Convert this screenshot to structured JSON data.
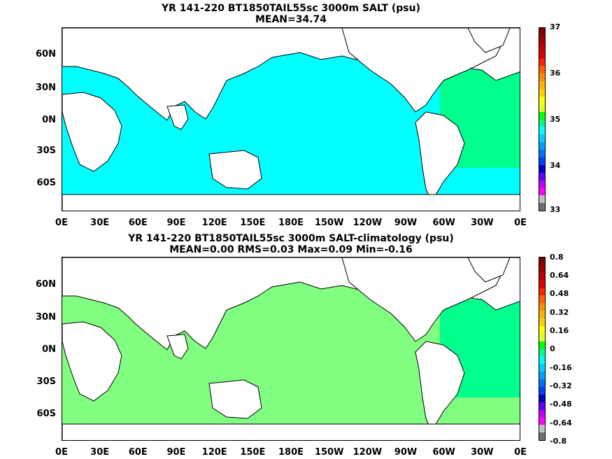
{
  "panels": [
    {
      "title1": "YR 141-220 BT1850TAIL55sc 3000m SALT (psu)",
      "title2": "MEAN=34.74",
      "ocean_color": "#00ffff",
      "patch_color": "#00ff8c",
      "colorbar": {
        "labels": [
          "37",
          "36",
          "35",
          "34",
          "33"
        ],
        "colors": [
          "#7f0000",
          "#a00000",
          "#c00000",
          "#e00000",
          "#ff2000",
          "#ff6000",
          "#ff8c00",
          "#ffb000",
          "#ffd000",
          "#ffff00",
          "#e0ff20",
          "#00ff00",
          "#00ff8c",
          "#00ffff",
          "#00d0ff",
          "#00a0ff",
          "#0070ff",
          "#0040ff",
          "#0000c0",
          "#6000ff",
          "#c000ff",
          "#ff00ff",
          "#c0c0c0",
          "#707070"
        ]
      }
    },
    {
      "title1": "YR 141-220 BT1850TAIL55sc 3000m SALT-climatology (psu)",
      "title2": "MEAN=0.00   RMS=0.03   Max=0.09   Min=-0.16",
      "ocean_color": "#80ff80",
      "patch_color": "#00ff8c",
      "colorbar": {
        "labels": [
          "0.8",
          "0.64",
          "0.48",
          "0.32",
          "0.16",
          "0",
          "-0.16",
          "-0.32",
          "-0.48",
          "-0.64",
          "-0.8"
        ],
        "colors": [
          "#7f0000",
          "#a00000",
          "#c00000",
          "#e00000",
          "#ff2000",
          "#ff6000",
          "#ff8c00",
          "#ffb000",
          "#ffd000",
          "#ffff00",
          "#e0ff20",
          "#00ff00",
          "#00ff8c",
          "#00ffff",
          "#00d0ff",
          "#00a0ff",
          "#0070ff",
          "#0040ff",
          "#0000c0",
          "#6000ff",
          "#c000ff",
          "#ff00ff",
          "#c0c0c0",
          "#707070"
        ]
      }
    }
  ],
  "axes": {
    "y_labels": [
      "60N",
      "30N",
      "0N",
      "30S",
      "60S"
    ],
    "x_labels": [
      "0E",
      "30E",
      "60E",
      "90E",
      "120E",
      "150E",
      "180E",
      "150W",
      "120W",
      "90W",
      "60W",
      "30W",
      "0E"
    ]
  }
}
